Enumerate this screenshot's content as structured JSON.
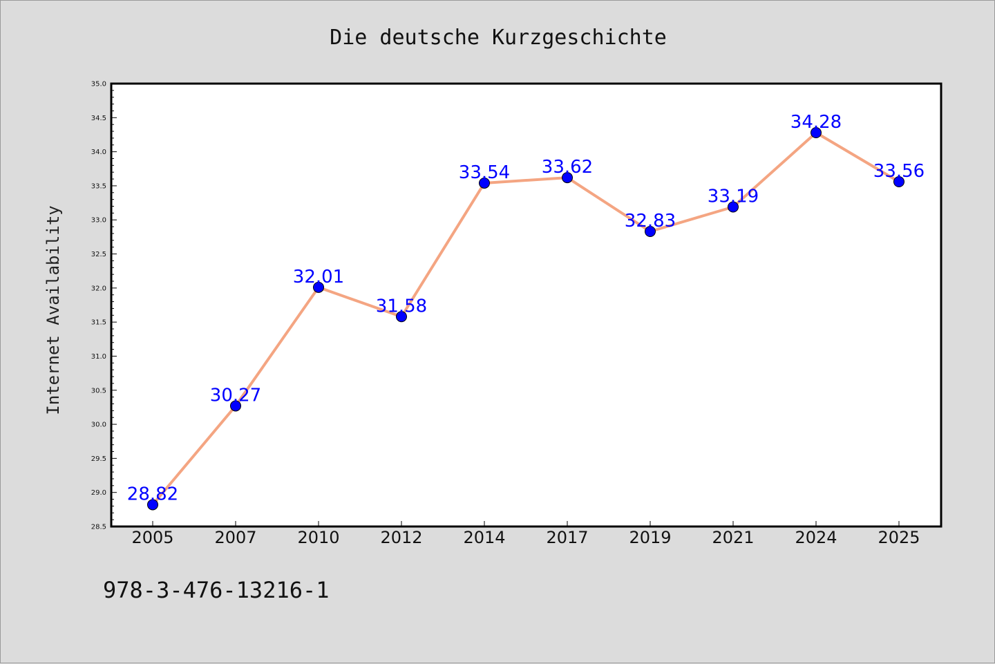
{
  "chart_data": {
    "type": "line",
    "title": "Die deutsche Kurzgeschichte",
    "xlabel": "",
    "ylabel": "Internet Availability",
    "categories": [
      "2005",
      "2007",
      "2010",
      "2012",
      "2014",
      "2017",
      "2019",
      "2021",
      "2024",
      "2025"
    ],
    "series": [
      {
        "values": [
          28.82,
          30.27,
          32.01,
          31.58,
          33.54,
          33.62,
          32.83,
          33.19,
          34.28,
          33.56
        ]
      }
    ],
    "data_labels": [
      "28.82",
      "30.27",
      "32.01",
      "31.58",
      "33.54",
      "33.62",
      "32.83",
      "33.19",
      "34.28",
      "33.56"
    ],
    "ylim": [
      28.5,
      35.0
    ],
    "yticks": [
      "28.5",
      "29.0",
      "29.5",
      "30.0",
      "30.5",
      "31.0",
      "31.5",
      "32.0",
      "32.5",
      "33.0",
      "33.5",
      "34.0",
      "34.5",
      "35.0"
    ],
    "grid": false,
    "legend": "none",
    "colors": {
      "line": "#f4a582",
      "marker": "#0000ff",
      "label": "#0000ff",
      "background": "#dcdcdc",
      "plot_area": "#ffffff"
    }
  },
  "footer": {
    "isbn": "978-3-476-13216-1"
  }
}
